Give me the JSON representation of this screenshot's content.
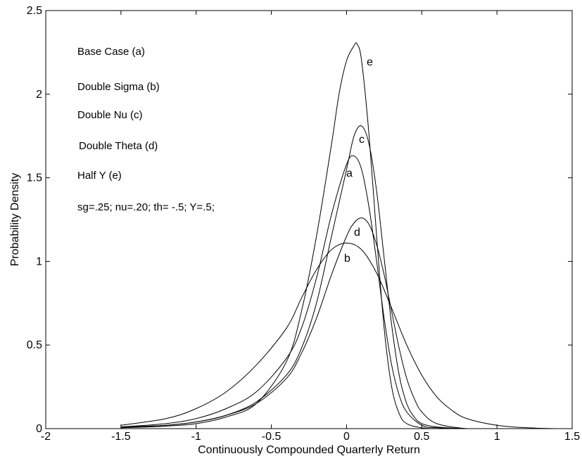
{
  "chart_data": {
    "type": "line",
    "title": "",
    "xlabel": "Continuously Compounded Quarterly Return",
    "ylabel": "Probability Density",
    "xlim": [
      -2,
      1.5
    ],
    "ylim": [
      0,
      2.5
    ],
    "xticks": [
      -2,
      -1.5,
      -1,
      -0.5,
      0,
      0.5,
      1,
      1.5
    ],
    "xtick_labels": [
      "-2",
      "-1.5",
      "-1",
      "-0.5",
      "0",
      "0.5",
      "1",
      "1.5"
    ],
    "yticks": [
      0,
      0.5,
      1,
      1.5,
      2,
      2.5
    ],
    "ytick_labels": [
      "0",
      "0.5",
      "1",
      "1.5",
      "2",
      "2.5"
    ],
    "grid": false,
    "annotations": [
      "Base Case (a)",
      "Double Sigma (b)",
      "Double Nu (c)",
      "Double Theta (d)",
      "Half Y (e)",
      "sg=.25; nu=.20; th= -.5; Y=.5;"
    ],
    "series": [
      {
        "label": "a",
        "x": [
          -1.5,
          -1.2,
          -1.0,
          -0.8,
          -0.6,
          -0.4,
          -0.3,
          -0.2,
          -0.1,
          0.0,
          0.05,
          0.1,
          0.15,
          0.2,
          0.25,
          0.3,
          0.35,
          0.4,
          0.5,
          0.6,
          0.8,
          1.0
        ],
        "y": [
          0.01,
          0.03,
          0.06,
          0.12,
          0.22,
          0.42,
          0.6,
          0.9,
          1.28,
          1.58,
          1.63,
          1.55,
          1.32,
          1.0,
          0.66,
          0.38,
          0.2,
          0.1,
          0.02,
          0.005,
          0.0,
          0.0
        ]
      },
      {
        "label": "b",
        "x": [
          -1.5,
          -1.2,
          -1.0,
          -0.8,
          -0.6,
          -0.4,
          -0.3,
          -0.2,
          -0.1,
          0.0,
          0.1,
          0.2,
          0.3,
          0.4,
          0.5,
          0.6,
          0.7,
          0.8,
          1.0,
          1.2,
          1.4
        ],
        "y": [
          0.02,
          0.06,
          0.12,
          0.22,
          0.38,
          0.6,
          0.78,
          0.95,
          1.07,
          1.11,
          1.07,
          0.93,
          0.72,
          0.5,
          0.32,
          0.19,
          0.11,
          0.06,
          0.02,
          0.005,
          0.0
        ]
      },
      {
        "label": "c",
        "x": [
          -1.5,
          -1.2,
          -1.0,
          -0.8,
          -0.6,
          -0.4,
          -0.3,
          -0.2,
          -0.1,
          0.0,
          0.05,
          0.1,
          0.15,
          0.2,
          0.25,
          0.3,
          0.35,
          0.4,
          0.45,
          0.5,
          0.6,
          0.8,
          1.0
        ],
        "y": [
          0.005,
          0.02,
          0.04,
          0.08,
          0.16,
          0.32,
          0.48,
          0.75,
          1.15,
          1.55,
          1.75,
          1.81,
          1.7,
          1.42,
          1.02,
          0.62,
          0.32,
          0.15,
          0.07,
          0.03,
          0.01,
          0.0,
          0.0
        ]
      },
      {
        "label": "d",
        "x": [
          -1.5,
          -1.2,
          -1.0,
          -0.8,
          -0.6,
          -0.4,
          -0.3,
          -0.2,
          -0.1,
          0.0,
          0.05,
          0.1,
          0.15,
          0.2,
          0.25,
          0.3,
          0.35,
          0.4,
          0.45,
          0.5,
          0.6,
          0.8,
          1.0
        ],
        "y": [
          0.01,
          0.02,
          0.04,
          0.08,
          0.15,
          0.3,
          0.45,
          0.66,
          0.92,
          1.15,
          1.23,
          1.26,
          1.22,
          1.1,
          0.92,
          0.7,
          0.48,
          0.3,
          0.18,
          0.1,
          0.03,
          0.0,
          0.0
        ]
      },
      {
        "label": "e",
        "x": [
          -1.5,
          -1.2,
          -1.0,
          -0.8,
          -0.6,
          -0.4,
          -0.3,
          -0.2,
          -0.1,
          -0.05,
          0.0,
          0.05,
          0.07,
          0.1,
          0.15,
          0.2,
          0.25,
          0.3,
          0.35,
          0.4,
          0.5,
          0.6,
          0.8,
          1.0
        ],
        "y": [
          0.005,
          0.015,
          0.03,
          0.07,
          0.15,
          0.4,
          0.7,
          1.15,
          1.7,
          2.0,
          2.2,
          2.29,
          2.3,
          2.2,
          1.75,
          1.15,
          0.6,
          0.25,
          0.09,
          0.03,
          0.005,
          0.0,
          0.0,
          0.0
        ]
      }
    ]
  }
}
